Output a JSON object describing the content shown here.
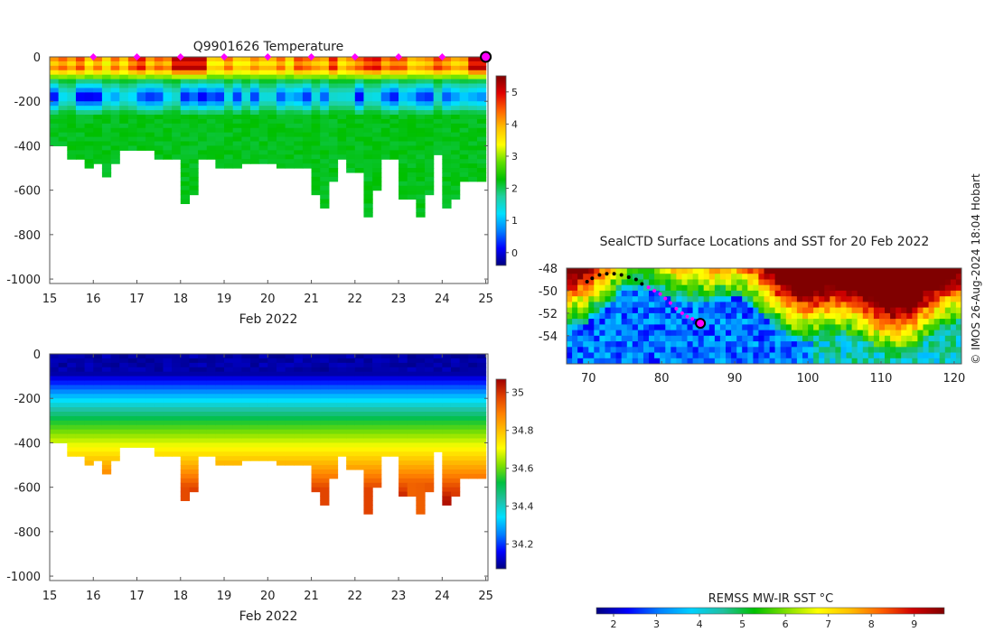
{
  "colors": {
    "temp_colormap": [
      "#00007f",
      "#0000ff",
      "#0080ff",
      "#00e0ff",
      "#20d0a0",
      "#00c000",
      "#60e000",
      "#ffff00",
      "#ffc000",
      "#ff6000",
      "#e00000",
      "#800000"
    ],
    "salt_colormap": [
      "#00007f",
      "#0000ff",
      "#0080ff",
      "#00e0ff",
      "#20c0a0",
      "#00c040",
      "#80e000",
      "#ffff00",
      "#ffc000",
      "#ff8000",
      "#e04000",
      "#a00000"
    ],
    "sst_colormap": [
      "#00007f",
      "#0000ff",
      "#0080ff",
      "#00d0ff",
      "#20c0a0",
      "#00c000",
      "#80e000",
      "#ffff00",
      "#ffc000",
      "#ff6000",
      "#d00000",
      "#800000"
    ],
    "marker": "#ff00ff",
    "track": "#000000"
  },
  "chart_data": [
    {
      "id": "temperature-section",
      "type": "heatmap",
      "title": "Q9901626  Temperature",
      "xlabel": "Feb 2022",
      "xlim": [
        15,
        25.05
      ],
      "xticks": [
        15,
        16,
        17,
        18,
        19,
        20,
        21,
        22,
        23,
        24,
        25
      ],
      "ylim": [
        -1020,
        0
      ],
      "yticks": [
        0,
        -200,
        -400,
        -600,
        -800,
        -1000
      ],
      "colorbar": {
        "range": [
          -0.4,
          5.5
        ],
        "ticks": [
          0,
          1,
          2,
          3,
          4,
          5
        ]
      },
      "profile_times": [
        15.1,
        15.3,
        15.5,
        15.7,
        15.9,
        16.1,
        16.3,
        16.5,
        16.7,
        16.9,
        17.1,
        17.3,
        17.5,
        17.7,
        17.9,
        18.1,
        18.3,
        18.5,
        18.7,
        18.9,
        19.1,
        19.3,
        19.5,
        19.7,
        19.9,
        20.1,
        20.3,
        20.5,
        20.7,
        20.9,
        21.1,
        21.3,
        21.5,
        21.7,
        21.9,
        22.1,
        22.3,
        22.5,
        22.7,
        22.9,
        23.1,
        23.3,
        23.5,
        23.7,
        23.9,
        24.1,
        24.3,
        24.5,
        24.7,
        24.9
      ],
      "profile_max_depth": [
        400,
        400,
        460,
        460,
        490,
        480,
        540,
        480,
        410,
        410,
        410,
        410,
        460,
        460,
        460,
        650,
        610,
        460,
        460,
        500,
        500,
        500,
        480,
        470,
        470,
        470,
        500,
        500,
        500,
        500,
        610,
        670,
        560,
        460,
        520,
        520,
        710,
        600,
        460,
        460,
        640,
        640,
        720,
        610,
        440,
        680,
        630,
        560,
        560,
        560
      ],
      "surface_marker_days": [
        16,
        17,
        18,
        19,
        20,
        21,
        22,
        23,
        24
      ],
      "last_profile_day": 25
    },
    {
      "id": "salinity-section",
      "type": "heatmap",
      "title": "",
      "xlabel": "Feb 2022",
      "xlim": [
        15,
        25.05
      ],
      "xticks": [
        15,
        16,
        17,
        18,
        19,
        20,
        21,
        22,
        23,
        24,
        25
      ],
      "ylim": [
        -1020,
        0
      ],
      "yticks": [
        0,
        -200,
        -400,
        -600,
        -800,
        -1000
      ],
      "colorbar": {
        "range": [
          34.07,
          35.07
        ],
        "ticks": [
          34.2,
          34.4,
          34.6,
          34.8,
          35
        ]
      }
    },
    {
      "id": "sst-map",
      "type": "heatmap",
      "title": "SealCTD Surface Locations and SST for 20 Feb 2022",
      "xlim": [
        67,
        121
      ],
      "xticks": [
        70,
        80,
        90,
        100,
        110,
        120
      ],
      "ylim": [
        -56.5,
        -48
      ],
      "yticks": [
        -48,
        -50,
        -52,
        -54
      ],
      "track_lon": [
        69.8,
        70.5,
        71.5,
        72.5,
        73.5,
        74.5,
        75.5,
        76.5,
        77.3,
        78.2,
        79.0,
        79.8,
        80.5,
        81.2,
        82.0,
        82.8,
        83.5,
        84.2,
        85.0,
        85.3
      ],
      "track_lat": [
        -49.2,
        -48.9,
        -48.6,
        -48.5,
        -48.5,
        -48.6,
        -48.8,
        -49.0,
        -49.4,
        -49.7,
        -50.0,
        -50.3,
        -50.7,
        -51.1,
        -51.6,
        -52.0,
        -52.3,
        -52.5,
        -52.7,
        -52.9
      ],
      "last_position": {
        "lon": 85.3,
        "lat": -52.9
      },
      "colorbar": {
        "label": "REMSS MW-IR SST °C",
        "range": [
          1.6,
          9.7
        ],
        "ticks": [
          2,
          3,
          4,
          5,
          6,
          7,
          8,
          9
        ]
      }
    }
  ],
  "credit": "© IMOS 26-Aug-2024 18:04 Hobart"
}
